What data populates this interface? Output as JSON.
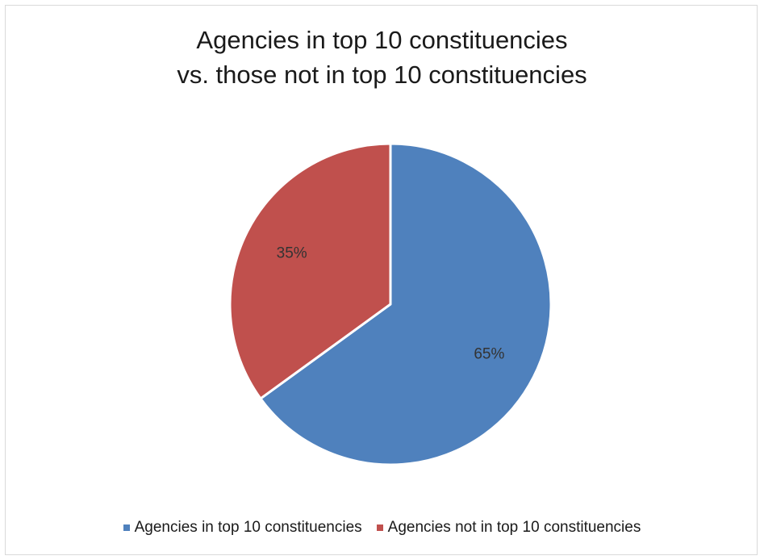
{
  "chart_data": {
    "type": "pie",
    "title_lines": [
      "Agencies in top 10 constituencies",
      "vs. those not in top 10 constituencies"
    ],
    "slices": [
      {
        "label": "Agencies in top 10 constituencies",
        "value": 65,
        "data_label": "65%",
        "color": "#4f81bd"
      },
      {
        "label": "Agencies not in top 10 constituencies",
        "value": 35,
        "data_label": "35%",
        "color": "#c0504d"
      }
    ],
    "start_angle": "12 o'clock",
    "direction": "clockwise",
    "legend_position": "bottom"
  }
}
